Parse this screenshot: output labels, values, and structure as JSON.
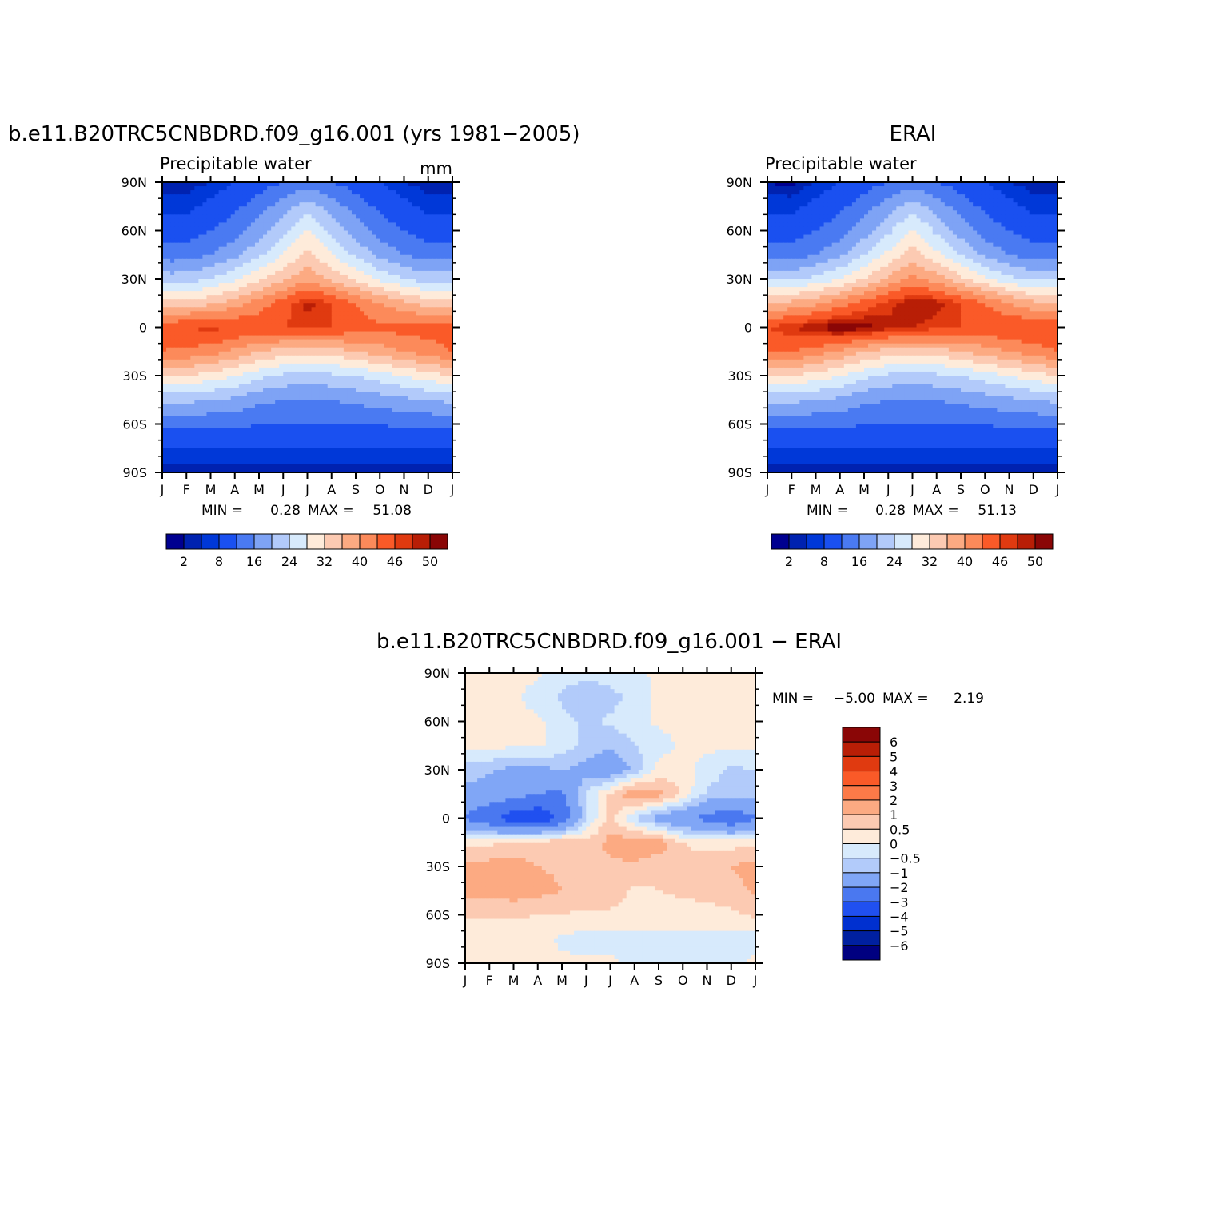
{
  "colors": {
    "diverging_16": [
      "#000090",
      "#0022b0",
      "#0038d8",
      "#1a50f0",
      "#4a7af2",
      "#7ea3f5",
      "#b2cafa",
      "#d7eafc",
      "#feebda",
      "#fccab2",
      "#fcaa82",
      "#fc8a5a",
      "#fa5a28",
      "#e03a10",
      "#b81e06",
      "#8a0606"
    ],
    "diff_14": [
      "#000080",
      "#0020a0",
      "#0030d0",
      "#2050f0",
      "#4a78f0",
      "#80a6f6",
      "#b2cbfa",
      "#d7eafc",
      "#feebda",
      "#fccab2",
      "#fcaa82",
      "#fc7a48",
      "#fa5a28",
      "#e03a10",
      "#b81e06",
      "#8a0606"
    ]
  },
  "panels": {
    "model": {
      "title": "b.e11.B20TRC5CNBDRD.f09_g16.001 (yrs 1981−2005)",
      "subtitle": "Precipitable water",
      "units": "mm",
      "min_label": "MIN =",
      "min_value": "0.28",
      "max_label": "MAX =",
      "max_value": "51.08"
    },
    "obs": {
      "title": "ERAI",
      "subtitle": "Precipitable water",
      "min_label": "MIN =",
      "min_value": "0.28",
      "max_label": "MAX =",
      "max_value": "51.13"
    },
    "diff": {
      "title": "b.e11.B20TRC5CNBDRD.f09_g16.001 − ERAI",
      "min_label": "MIN =",
      "min_value": "−5.00",
      "max_label": "MAX =",
      "max_value": "2.19"
    }
  },
  "chart_data": [
    {
      "type": "heatmap",
      "panel": "model",
      "title": "b.e11.B20TRC5CNBDRD.f09_g16.001 (yrs 1981−2005)",
      "subtitle": "Precipitable water",
      "units": "mm",
      "x_ticks": [
        "J",
        "F",
        "M",
        "A",
        "M",
        "J",
        "J",
        "A",
        "S",
        "O",
        "N",
        "D",
        "J"
      ],
      "y_ticks": [
        "90N",
        "60N",
        "30N",
        "0",
        "30S",
        "60S",
        "90S"
      ],
      "ylim": [
        -90,
        90
      ],
      "x_months": [
        0,
        1,
        2,
        3,
        4,
        5,
        6,
        7,
        8,
        9,
        10,
        11,
        12
      ],
      "y_lat": [
        90,
        75,
        60,
        45,
        30,
        15,
        0,
        -15,
        -30,
        -45,
        -60,
        -75,
        -90
      ],
      "z": [
        [
          1,
          1,
          2,
          4,
          6,
          8,
          10,
          8,
          6,
          4,
          2,
          1,
          1
        ],
        [
          3,
          3,
          5,
          7,
          10,
          14,
          18,
          14,
          10,
          7,
          5,
          3,
          3
        ],
        [
          6,
          6,
          8,
          10,
          14,
          19,
          24,
          19,
          14,
          10,
          8,
          6,
          6
        ],
        [
          10,
          10,
          12,
          15,
          19,
          24,
          29,
          24,
          19,
          15,
          12,
          10,
          10
        ],
        [
          18,
          18,
          20,
          23,
          27,
          31,
          35,
          31,
          27,
          23,
          20,
          18,
          18
        ],
        [
          30,
          30,
          31,
          34,
          38,
          42,
          47,
          44,
          40,
          36,
          33,
          30,
          30
        ],
        [
          42,
          44,
          45,
          44,
          43,
          44,
          45,
          44,
          42,
          41,
          42,
          42,
          42
        ],
        [
          40,
          39,
          38,
          35,
          32,
          30,
          29,
          30,
          32,
          34,
          36,
          38,
          40
        ],
        [
          28,
          28,
          26,
          24,
          21,
          19,
          18,
          19,
          20,
          22,
          24,
          26,
          28
        ],
        [
          17,
          17,
          16,
          15,
          13,
          12,
          12,
          12,
          13,
          14,
          15,
          16,
          17
        ],
        [
          9,
          9,
          9,
          9,
          8,
          8,
          8,
          8,
          8,
          8,
          9,
          9,
          9
        ],
        [
          4,
          4,
          4,
          4,
          4,
          4,
          4,
          4,
          4,
          4,
          4,
          4,
          4
        ],
        [
          1,
          1,
          1,
          1,
          1,
          1,
          1,
          1,
          1,
          1,
          1,
          1,
          1
        ]
      ],
      "colorbar_levels": [
        1,
        2,
        4,
        8,
        12,
        16,
        20,
        24,
        28,
        32,
        36,
        40,
        44,
        46,
        48,
        50
      ],
      "colorbar_labels": [
        "2",
        "8",
        "16",
        "24",
        "32",
        "40",
        "46",
        "50"
      ],
      "min": 0.28,
      "max": 51.08
    },
    {
      "type": "heatmap",
      "panel": "obs",
      "title": "ERAI",
      "subtitle": "Precipitable water",
      "x_ticks": [
        "J",
        "F",
        "M",
        "A",
        "M",
        "J",
        "J",
        "A",
        "S",
        "O",
        "N",
        "D",
        "J"
      ],
      "y_ticks": [
        "90N",
        "60N",
        "30N",
        "0",
        "30S",
        "60S",
        "90S"
      ],
      "ylim": [
        -90,
        90
      ],
      "x_months": [
        0,
        1,
        2,
        3,
        4,
        5,
        6,
        7,
        8,
        9,
        10,
        11,
        12
      ],
      "y_lat": [
        90,
        75,
        60,
        45,
        30,
        15,
        0,
        -15,
        -30,
        -45,
        -60,
        -75,
        -90
      ],
      "z": [
        [
          1,
          0.5,
          2,
          4,
          6,
          8,
          10,
          8,
          6,
          4,
          2,
          1,
          1
        ],
        [
          3,
          3,
          5,
          7,
          10,
          14,
          18,
          14,
          10,
          7,
          5,
          3,
          3
        ],
        [
          6,
          6,
          8,
          10,
          14,
          19,
          25,
          19,
          14,
          10,
          8,
          6,
          6
        ],
        [
          10,
          10,
          12,
          15,
          20,
          25,
          30,
          25,
          20,
          15,
          12,
          10,
          10
        ],
        [
          19,
          19,
          21,
          24,
          28,
          33,
          37,
          34,
          29,
          25,
          21,
          19,
          19
        ],
        [
          32,
          33,
          35,
          38,
          42,
          45,
          48,
          47,
          44,
          40,
          36,
          33,
          32
        ],
        [
          44,
          46,
          48,
          50,
          49,
          47,
          46,
          45,
          44,
          43,
          44,
          44,
          44
        ],
        [
          40,
          40,
          38,
          35,
          32,
          30,
          29,
          30,
          32,
          34,
          36,
          38,
          40
        ],
        [
          28,
          28,
          26,
          24,
          21,
          19,
          18,
          19,
          20,
          22,
          24,
          26,
          28
        ],
        [
          17,
          17,
          16,
          15,
          13,
          12,
          12,
          12,
          13,
          14,
          15,
          16,
          17
        ],
        [
          9,
          9,
          9,
          9,
          8,
          8,
          8,
          8,
          8,
          8,
          9,
          9,
          9
        ],
        [
          4,
          4,
          4,
          4,
          4,
          4,
          4,
          4,
          4,
          4,
          4,
          4,
          4
        ],
        [
          1,
          1,
          1,
          1,
          1,
          1,
          1,
          1,
          1,
          1,
          1,
          1,
          1
        ]
      ],
      "colorbar_levels": [
        1,
        2,
        4,
        8,
        12,
        16,
        20,
        24,
        28,
        32,
        36,
        40,
        44,
        46,
        48,
        50
      ],
      "colorbar_labels": [
        "2",
        "8",
        "16",
        "24",
        "32",
        "40",
        "46",
        "50"
      ],
      "min": 0.28,
      "max": 51.13
    },
    {
      "type": "heatmap",
      "panel": "diff",
      "title": "b.e11.B20TRC5CNBDRD.f09_g16.001 − ERAI",
      "x_ticks": [
        "J",
        "F",
        "M",
        "A",
        "M",
        "J",
        "J",
        "A",
        "S",
        "O",
        "N",
        "D",
        "J"
      ],
      "y_ticks": [
        "90N",
        "60N",
        "30N",
        "0",
        "30S",
        "60S",
        "90S"
      ],
      "ylim": [
        -90,
        90
      ],
      "x_months": [
        0,
        1,
        2,
        3,
        4,
        5,
        6,
        7,
        8,
        9,
        10,
        11,
        12
      ],
      "y_lat": [
        90,
        75,
        60,
        45,
        30,
        15,
        0,
        -15,
        -30,
        -45,
        -60,
        -75,
        -90
      ],
      "z": [
        [
          0.1,
          0.1,
          0.1,
          0.1,
          -0.2,
          -0.3,
          -0.2,
          -0.1,
          0.1,
          0.1,
          0.1,
          0.1,
          0.1
        ],
        [
          0.1,
          0.1,
          0.1,
          -0.2,
          -0.6,
          -1,
          -0.7,
          -0.3,
          0.1,
          0.1,
          0.1,
          0.1,
          0.1
        ],
        [
          0.1,
          0.1,
          0.1,
          0.1,
          -0.3,
          -0.6,
          -0.4,
          -0.2,
          0.1,
          0.1,
          0.1,
          0.1,
          0.1
        ],
        [
          0.1,
          0.1,
          0.1,
          0.1,
          -0.2,
          -0.7,
          -0.9,
          -0.5,
          -0.2,
          0.1,
          0.1,
          0.1,
          0.1
        ],
        [
          -0.7,
          -0.9,
          -1.2,
          -1.2,
          -1,
          -1.2,
          -1.6,
          -0.9,
          0.2,
          0.2,
          -0.2,
          -0.6,
          -0.5
        ],
        [
          -1.2,
          -1.4,
          -1.7,
          -2,
          -2.2,
          -0.5,
          0.6,
          1.5,
          1.2,
          0.4,
          -0.6,
          -0.8,
          -0.6
        ],
        [
          -2.1,
          -2.8,
          -3.6,
          -3.8,
          -2.8,
          -0.5,
          0.7,
          -0.5,
          -1.3,
          -1.9,
          -2.3,
          -2.9,
          -2.1
        ],
        [
          0.3,
          0.4,
          0.6,
          0.8,
          0.9,
          0.6,
          1.2,
          1.4,
          1.3,
          0.5,
          0.3,
          0.3,
          0.4
        ],
        [
          1.1,
          1.2,
          1.2,
          1,
          0.9,
          0.8,
          0.9,
          0.9,
          0.7,
          0.7,
          0.8,
          1,
          1.2
        ],
        [
          1.2,
          1.2,
          1.3,
          1.2,
          1,
          0.8,
          0.8,
          0.4,
          0.5,
          0.6,
          0.7,
          0.8,
          1.1
        ],
        [
          0.6,
          0.6,
          0.6,
          0.5,
          0.5,
          0.4,
          0.4,
          0.4,
          0.3,
          0.3,
          0.3,
          0.4,
          0.6
        ],
        [
          0.2,
          0.1,
          0.2,
          0.2,
          -0.1,
          -0.2,
          -0.2,
          -0.2,
          -0.2,
          -0.2,
          -0.2,
          -0.2,
          -0.2
        ],
        [
          0.2,
          0.2,
          0.1,
          0.1,
          0.1,
          0.1,
          0.1,
          -0.1,
          -0.1,
          -0.1,
          -0.1,
          -0.1,
          0.1
        ]
      ],
      "colorbar_levels": [
        -6,
        -5,
        -4,
        -3,
        -2,
        -1,
        -0.5,
        0,
        0.5,
        1,
        2,
        3,
        4,
        5,
        6
      ],
      "colorbar_labels": [
        "6",
        "5",
        "4",
        "3",
        "2",
        "1",
        "0.5",
        "0",
        "−0.5",
        "−1",
        "−2",
        "−3",
        "−4",
        "−5",
        "−6"
      ],
      "min": -5.0,
      "max": 2.19
    }
  ]
}
